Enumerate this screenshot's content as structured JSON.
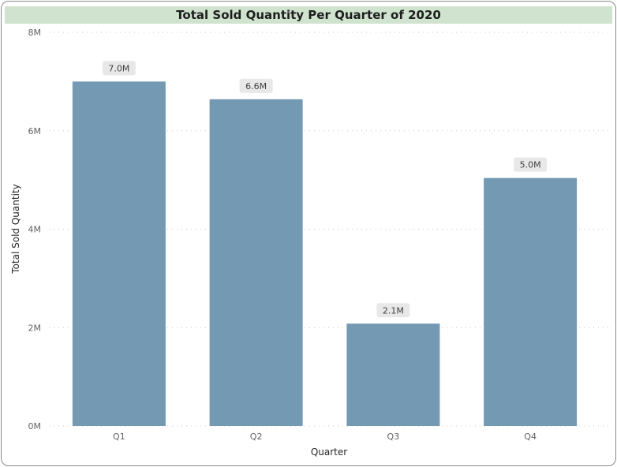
{
  "chart_data": {
    "type": "bar",
    "title": "Total Sold Quantity Per Quarter of 2020",
    "xlabel": "Quarter",
    "ylabel": "Total Sold Quantity",
    "categories": [
      "Q1",
      "Q2",
      "Q3",
      "Q4"
    ],
    "values": [
      7000000,
      6640000,
      2080000,
      5040000
    ],
    "data_labels": [
      "7.0M",
      "6.6M",
      "2.1M",
      "5.0M"
    ],
    "ylim": [
      0,
      8000000
    ],
    "yticks": [
      {
        "value": 0,
        "label": "0M"
      },
      {
        "value": 2000000,
        "label": "2M"
      },
      {
        "value": 4000000,
        "label": "4M"
      },
      {
        "value": 6000000,
        "label": "6M"
      },
      {
        "value": 8000000,
        "label": "8M"
      }
    ],
    "grid": true,
    "colors": {
      "bar": "#7399b3",
      "title_bg": "#cfe3cf",
      "label_bg": "#e8e8e8",
      "grid": "#c8c8c8"
    }
  }
}
